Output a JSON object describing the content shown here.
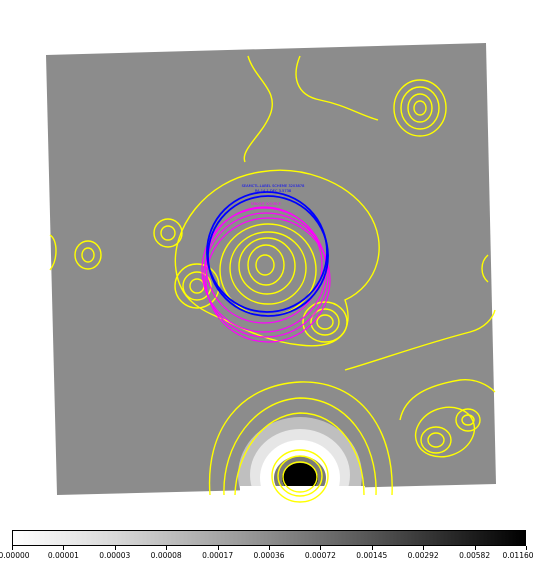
{
  "colors": {
    "background_gray": "#8c8c8c",
    "contour": "#ffff00",
    "circle_blue": "#0000ff",
    "circle_magenta": "#ff00ff"
  },
  "annotations": {
    "blue_label_line1": "SEAMCTL-LABEL SCHEME 3203878",
    "blue_label_line2": "RA 14.1 DEC 3.5738",
    "magenta_label": "BRIGHT SOURCE"
  },
  "colorbar": {
    "tick_labels": [
      "0.00000",
      "0.00001",
      "0.00003",
      "0.00008",
      "0.00017",
      "0.00036",
      "0.00072",
      "0.00145",
      "0.00292",
      "0.00582",
      "0.01160"
    ]
  }
}
